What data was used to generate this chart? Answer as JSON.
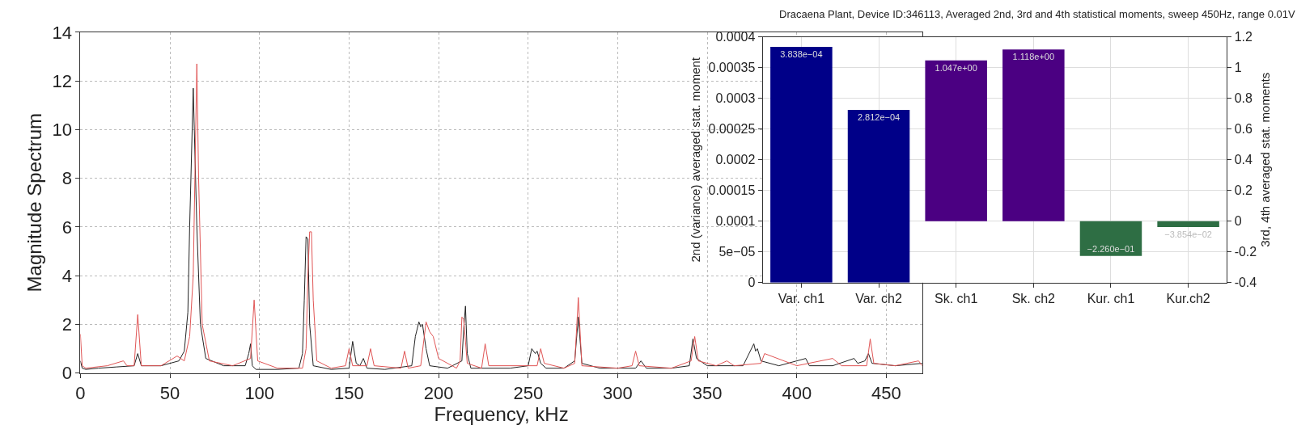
{
  "chart_data": [
    {
      "type": "line",
      "xlabel": "Frequency, kHz",
      "ylabel": "Magnitude Spectrum",
      "xlim": [
        0,
        470
      ],
      "xticks": [
        0,
        50,
        100,
        150,
        200,
        250,
        300,
        350,
        400,
        450
      ],
      "ylim": [
        0,
        14
      ],
      "yticks": [
        0,
        2,
        4,
        6,
        8,
        10,
        12,
        14
      ],
      "grid": true,
      "series": [
        {
          "color": "#222222",
          "x": [
            0,
            1,
            3,
            10,
            20,
            30,
            32,
            34,
            45,
            55,
            58,
            60,
            61,
            63,
            65,
            67,
            70,
            80,
            92,
            94,
            95,
            96,
            98,
            110,
            122,
            124,
            125,
            126,
            127,
            128,
            130,
            140,
            150,
            152,
            154,
            156,
            158,
            160,
            170,
            185,
            187,
            189,
            190,
            191,
            193,
            195,
            205,
            213,
            214,
            215,
            216,
            218,
            240,
            250,
            252,
            254,
            255,
            257,
            260,
            270,
            276,
            278,
            280,
            290,
            310,
            313,
            316,
            330,
            340,
            342,
            344,
            350,
            370,
            376,
            377,
            378,
            380,
            390,
            405,
            407,
            420,
            432,
            434,
            438,
            440,
            442,
            455,
            470
          ],
          "values": [
            0.5,
            0.2,
            0.15,
            0.2,
            0.25,
            0.3,
            0.8,
            0.3,
            0.3,
            0.5,
            0.9,
            2.5,
            6,
            11.7,
            6,
            2,
            0.6,
            0.3,
            0.3,
            0.8,
            1.2,
            0.3,
            0.15,
            0.15,
            0.2,
            0.8,
            3,
            5.6,
            5.5,
            2,
            0.3,
            0.15,
            0.2,
            1.3,
            0.4,
            0.3,
            0.6,
            0.2,
            0.15,
            0.3,
            1.5,
            2.1,
            1.9,
            2.0,
            1.0,
            0.3,
            0.2,
            0.5,
            1.8,
            2.75,
            0.8,
            0.2,
            0.2,
            0.3,
            1.0,
            0.8,
            0.9,
            0.4,
            0.2,
            0.2,
            0.5,
            2.3,
            0.4,
            0.2,
            0.2,
            0.5,
            0.2,
            0.2,
            0.3,
            1.4,
            0.6,
            0.3,
            0.3,
            1.2,
            0.9,
            1.0,
            0.5,
            0.3,
            0.6,
            0.3,
            0.3,
            0.6,
            0.4,
            0.5,
            0.8,
            0.4,
            0.3,
            0.4
          ]
        },
        {
          "color": "#e05555",
          "x": [
            0,
            1,
            3,
            15,
            24,
            26,
            30,
            32,
            34,
            45,
            54,
            58,
            61,
            63,
            65,
            66,
            68,
            72,
            85,
            95,
            97,
            99,
            110,
            124,
            126,
            127,
            128,
            129,
            130,
            132,
            140,
            148,
            150,
            152,
            160,
            162,
            164,
            179,
            181,
            183,
            190,
            193,
            195,
            197,
            200,
            210,
            212,
            213,
            214,
            216,
            224,
            226,
            228,
            250,
            255,
            257,
            259,
            270,
            276,
            278,
            280,
            300,
            308,
            310,
            312,
            330,
            341,
            343,
            345,
            355,
            361,
            365,
            380,
            382,
            400,
            420,
            425,
            439,
            441,
            443,
            455,
            468,
            470
          ],
          "values": [
            1.6,
            0.3,
            0.2,
            0.3,
            0.5,
            0.3,
            0.3,
            2.4,
            0.3,
            0.3,
            0.7,
            0.5,
            1.5,
            4,
            12.7,
            8,
            2,
            0.5,
            0.3,
            0.6,
            3.0,
            0.5,
            0.2,
            0.2,
            1.0,
            4,
            5.8,
            5.8,
            3,
            0.5,
            0.2,
            0.3,
            1.0,
            0.3,
            0.3,
            1.0,
            0.3,
            0.2,
            0.9,
            0.2,
            0.3,
            2.1,
            1.7,
            1.5,
            0.6,
            0.2,
            0.5,
            2.3,
            2.2,
            0.4,
            0.2,
            1.2,
            0.3,
            0.3,
            0.3,
            1.0,
            0.4,
            0.2,
            0.4,
            3.1,
            0.3,
            0.2,
            0.3,
            0.9,
            0.3,
            0.2,
            0.5,
            1.5,
            0.5,
            0.3,
            0.5,
            0.3,
            0.4,
            0.8,
            0.3,
            0.6,
            0.3,
            0.3,
            1.4,
            0.4,
            0.3,
            0.5,
            0.3
          ]
        }
      ]
    },
    {
      "type": "bar",
      "title": "Dracaena Plant, Device ID:346113, Averaged 2nd, 3rd and 4th statistical moments, sweep 450Hz, range 0.01V",
      "ylabel": "2nd (variance) averaged stat. moment",
      "y2label": "3rd, 4th averaged stat. moments",
      "categories": [
        "Var. ch1",
        "Var. ch2",
        "Sk. ch1",
        "Sk. ch2",
        "Kur. ch1",
        "Kur.ch2"
      ],
      "ylim": [
        0,
        0.0004
      ],
      "yticks": [
        0,
        {
          "value": 5e-05,
          "label": "5e−05"
        },
        0.0001,
        0.00015,
        0.0002,
        0.00025,
        0.0003,
        0.00035,
        0.0004
      ],
      "y2lim": [
        -0.4,
        1.2
      ],
      "y2ticks": [
        -0.4,
        -0.2,
        0,
        0.2,
        0.4,
        0.6,
        0.8,
        1,
        1.2
      ],
      "grid": true,
      "series": [
        {
          "color": "#000088",
          "values": [
            0.0003838,
            0.0002812,
            null,
            null,
            null,
            null
          ],
          "value_labels": [
            "3.838e−04",
            "2.812e−04",
            null,
            null,
            null,
            null
          ]
        },
        {
          "color": "#4b0082",
          "axis": "y2",
          "values": [
            null,
            null,
            1.047,
            1.118,
            null,
            null
          ],
          "value_labels": [
            null,
            null,
            "1.047e+00",
            "1.118e+00",
            null,
            null
          ]
        },
        {
          "color": "#2e6e44",
          "axis": "y2",
          "values": [
            null,
            null,
            null,
            null,
            -0.226,
            -0.03854
          ],
          "value_labels": [
            null,
            null,
            null,
            null,
            "−2.260e−01",
            "−3.854e−02"
          ]
        }
      ]
    }
  ]
}
